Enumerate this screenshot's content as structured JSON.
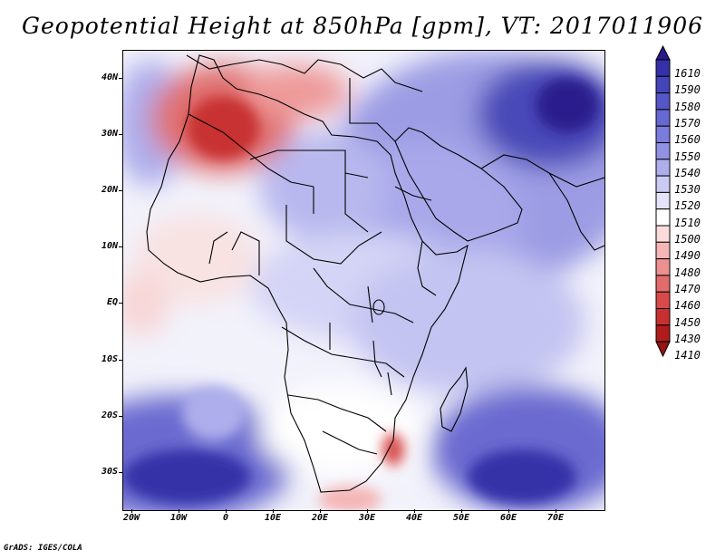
{
  "title": "Geopotential Height at 850hPa [gpm], VT: 2017011906",
  "credit": "GrADS: IGES/COLA",
  "map": {
    "variable": "Geopotential Height",
    "level": "850hPa",
    "units": "gpm",
    "valid_time": "2017011906",
    "lat_labels": [
      "40N",
      "30N",
      "20N",
      "10N",
      "EQ",
      "10S",
      "20S",
      "30S"
    ],
    "lon_labels": [
      "20W",
      "10W",
      "0",
      "10E",
      "20E",
      "30E",
      "40E",
      "50E",
      "60E",
      "70E"
    ]
  },
  "colorbar": {
    "levels": [
      "1610",
      "1590",
      "1580",
      "1570",
      "1560",
      "1550",
      "1540",
      "1530",
      "1520",
      "1510",
      "1500",
      "1490",
      "1480",
      "1470",
      "1460",
      "1450",
      "1430",
      "1410"
    ],
    "colors": [
      "#2a1a8c",
      "#3530a8",
      "#4444bb",
      "#5656c8",
      "#6868d2",
      "#7c7cdc",
      "#9292e4",
      "#aeaeec",
      "#cacaf4",
      "#e4e4fa",
      "#ffffff",
      "#fadcdc",
      "#f4b6b6",
      "#ec9090",
      "#e26c6c",
      "#d84a4a",
      "#c83030",
      "#b01c1c",
      "#961414"
    ]
  }
}
